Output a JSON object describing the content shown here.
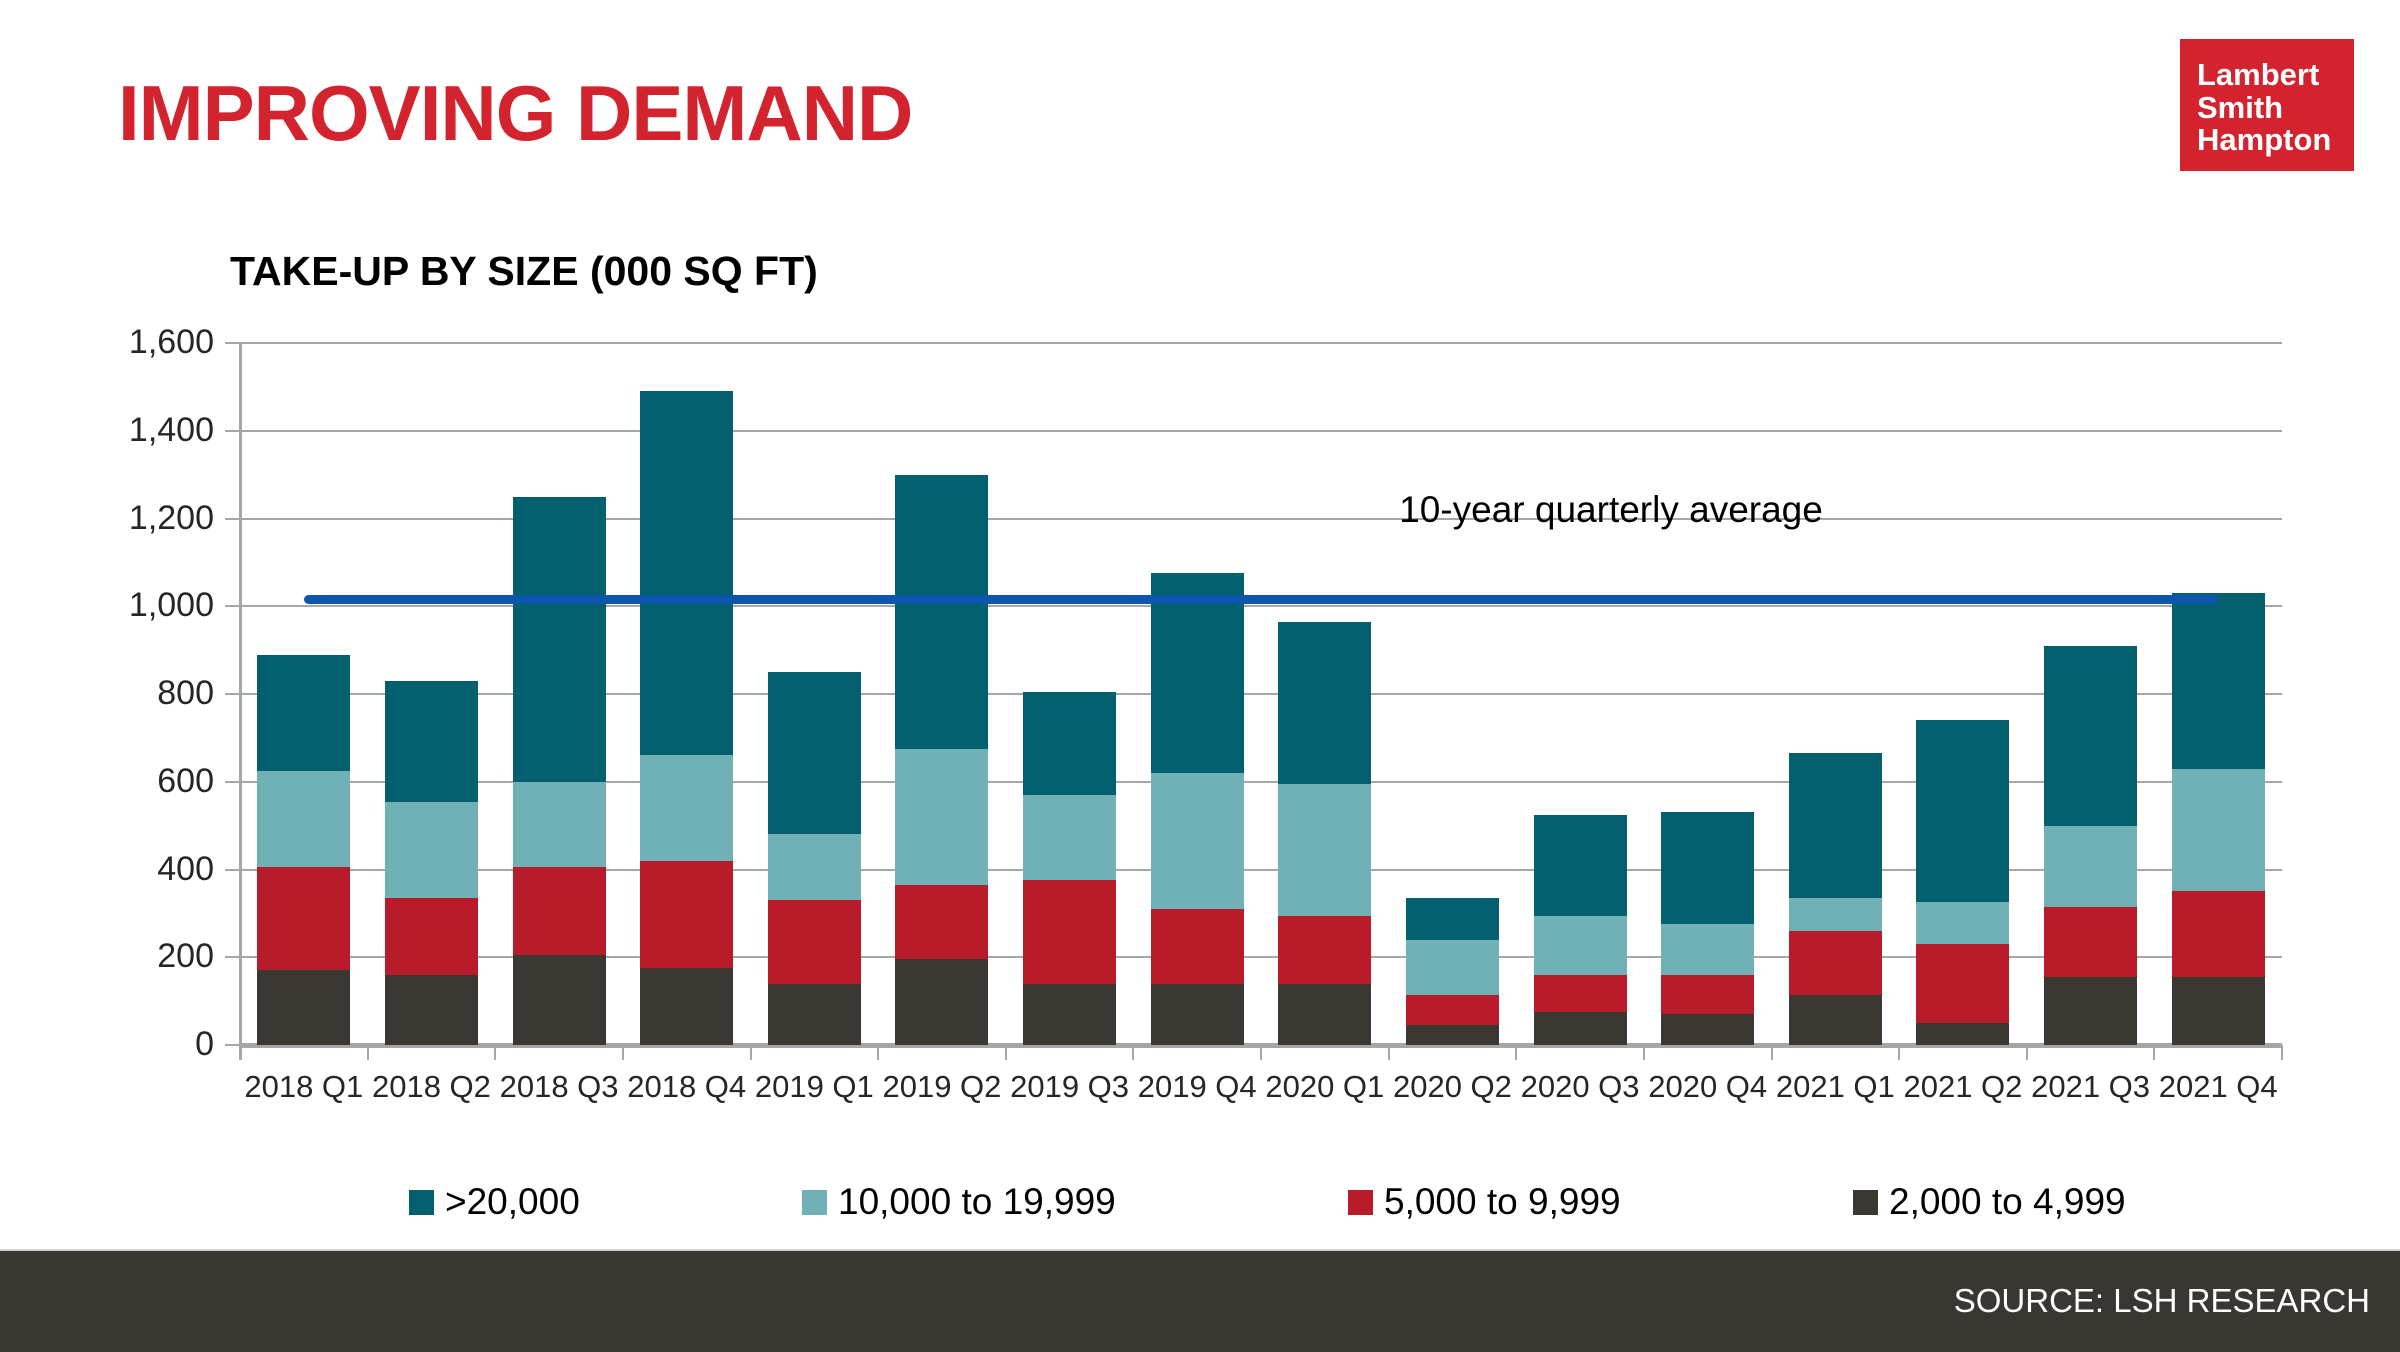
{
  "slide": {
    "title": "IMPROVING DEMAND",
    "logo": {
      "line1": "Lambert",
      "line2": "Smith",
      "line3": "Hampton"
    }
  },
  "footer": {
    "source": "SOURCE: LSH RESEARCH"
  },
  "colors": {
    "accent_red": "#d2232e",
    "footer_bg": "#3a3632",
    "gridline_gray": "#a6a6a6",
    "axis_text": "#262626"
  },
  "chart_data": {
    "type": "bar",
    "stacked": true,
    "title": "TAKE-UP BY SIZE (000 SQ FT)",
    "categories": [
      "2018 Q1",
      "2018 Q2",
      "2018 Q3",
      "2018 Q4",
      "2019 Q1",
      "2019 Q2",
      "2019 Q3",
      "2019 Q4",
      "2020 Q1",
      "2020 Q2",
      "2020 Q3",
      "2020 Q4",
      "2021 Q1",
      "2021 Q2",
      "2021 Q3",
      "2021 Q4"
    ],
    "series": [
      {
        "name": "2,000 to 4,999",
        "color": "#3b3733",
        "values": [
          170,
          160,
          205,
          175,
          140,
          195,
          140,
          140,
          140,
          45,
          75,
          70,
          115,
          50,
          155,
          155
        ]
      },
      {
        "name": "5,000 to 9,999",
        "color": "#b81c2b",
        "values": [
          235,
          175,
          200,
          245,
          190,
          170,
          235,
          170,
          155,
          70,
          85,
          90,
          145,
          180,
          160,
          195
        ]
      },
      {
        "name": "10,000 to 19,999",
        "color": "#6fb1b5",
        "values": [
          220,
          220,
          195,
          240,
          150,
          310,
          195,
          310,
          300,
          125,
          135,
          115,
          75,
          95,
          185,
          280
        ]
      },
      {
        "name": ">20,000",
        "color": "#04606e",
        "values": [
          265,
          275,
          650,
          830,
          370,
          625,
          235,
          455,
          370,
          95,
          230,
          255,
          330,
          415,
          410,
          400
        ]
      }
    ],
    "totals": [
      890,
      830,
      1250,
      1490,
      850,
      1300,
      805,
      1075,
      965,
      335,
      525,
      530,
      665,
      740,
      910,
      1030
    ],
    "legend_order": [
      ">20,000",
      "10,000 to 19,999",
      "5,000 to 9,999",
      "2,000 to 4,999"
    ],
    "average_line": {
      "label": "10-year quarterly average",
      "value": 1015,
      "color": "#0d56ae"
    },
    "ylim": [
      0,
      1600
    ],
    "ytick_step": 200,
    "grid": true,
    "legend_position": "bottom",
    "xlabel": "",
    "ylabel": ""
  }
}
